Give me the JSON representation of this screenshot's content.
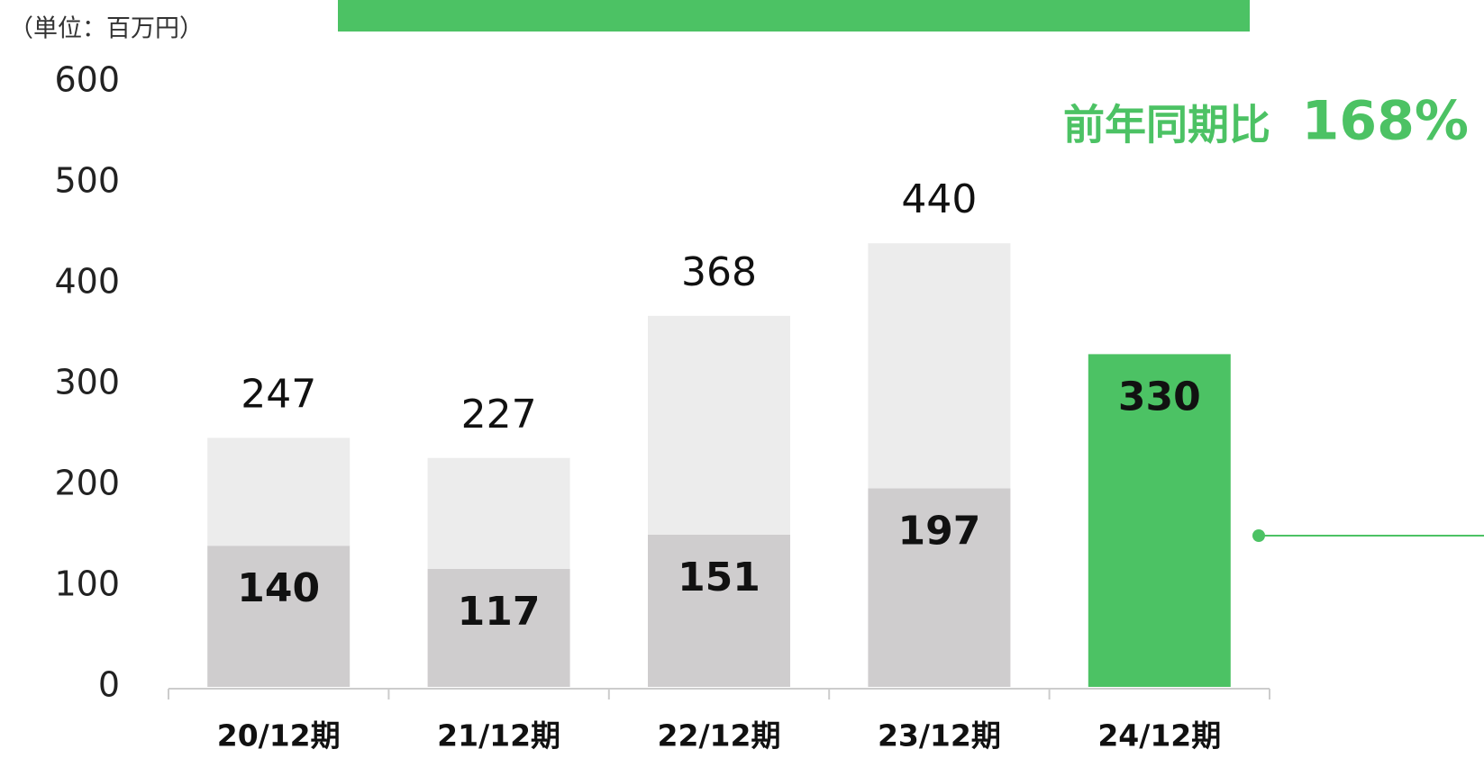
{
  "chart_data": {
    "type": "bar",
    "unit_label": "（単位：百万円）",
    "annotation_label": "前年同期比",
    "annotation_value": "168%",
    "categories": [
      "20/12期",
      "21/12期",
      "22/12期",
      "23/12期",
      "24/12期"
    ],
    "series": [
      {
        "color": "#cfcdce",
        "values": [
          140,
          117,
          151,
          197,
          null
        ]
      },
      {
        "color": "#ececec",
        "values": [
          107,
          110,
          217,
          243,
          null
        ]
      },
      {
        "color": "#4cc264",
        "values": [
          null,
          null,
          null,
          null,
          330
        ]
      }
    ],
    "totals": [
      247,
      227,
      368,
      440,
      null
    ],
    "ylim": [
      0,
      600
    ],
    "yticks": [
      0,
      100,
      200,
      300,
      400,
      500,
      600
    ],
    "grid": false
  }
}
